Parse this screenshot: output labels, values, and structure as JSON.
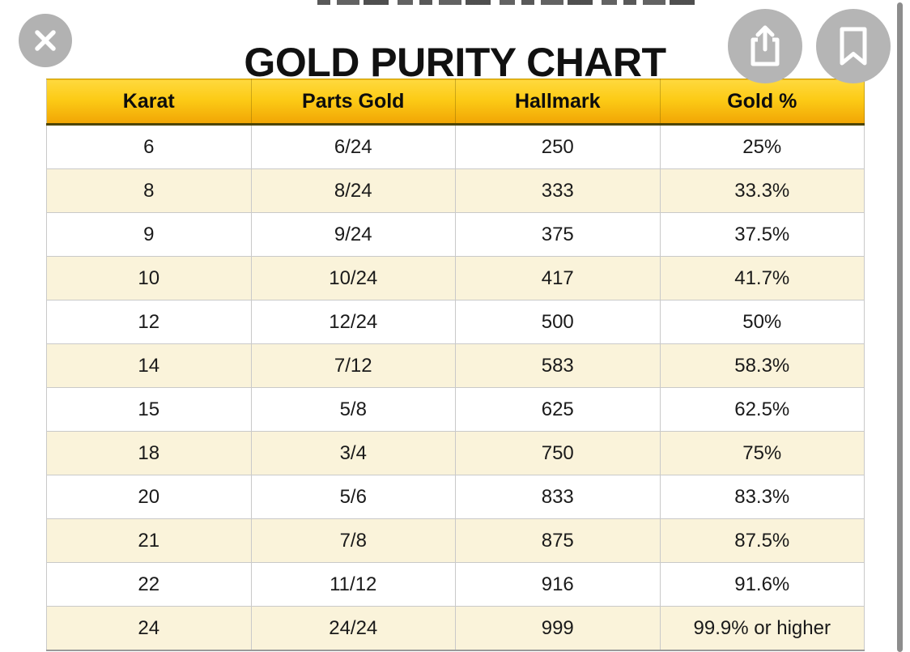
{
  "page": {
    "title": "GOLD PURITY CHART"
  },
  "viewer": {
    "icons": {
      "close": "close-icon",
      "share": "share-icon",
      "bookmark": "bookmark-icon"
    },
    "scrollbar_present": true
  },
  "chart_data": {
    "type": "table",
    "title": "GOLD PURITY CHART",
    "columns": [
      "Karat",
      "Parts Gold",
      "Hallmark",
      "Gold %"
    ],
    "rows": [
      [
        "6",
        "6/24",
        "250",
        "25%"
      ],
      [
        "8",
        "8/24",
        "333",
        "33.3%"
      ],
      [
        "9",
        "9/24",
        "375",
        "37.5%"
      ],
      [
        "10",
        "10/24",
        "417",
        "41.7%"
      ],
      [
        "12",
        "12/24",
        "500",
        "50%"
      ],
      [
        "14",
        "7/12",
        "583",
        "58.3%"
      ],
      [
        "15",
        "5/8",
        "625",
        "62.5%"
      ],
      [
        "18",
        "3/4",
        "750",
        "75%"
      ],
      [
        "20",
        "5/6",
        "833",
        "83.3%"
      ],
      [
        "21",
        "7/8",
        "875",
        "87.5%"
      ],
      [
        "22",
        "11/12",
        "916",
        "91.6%"
      ],
      [
        "24",
        "24/24",
        "999",
        "99.9% or higher"
      ]
    ]
  },
  "colors": {
    "header_gold_top": "#ffd93e",
    "header_gold_bottom": "#f1a504",
    "header_border_dark": "#4d4500",
    "row_alternate": "#faf3da",
    "row_base": "#ffffff",
    "grid_line": "#c9c9c9",
    "button_gray": "#b5b5b5",
    "scrollbar_gray": "#8d8d8d",
    "title_text": "#111111"
  }
}
